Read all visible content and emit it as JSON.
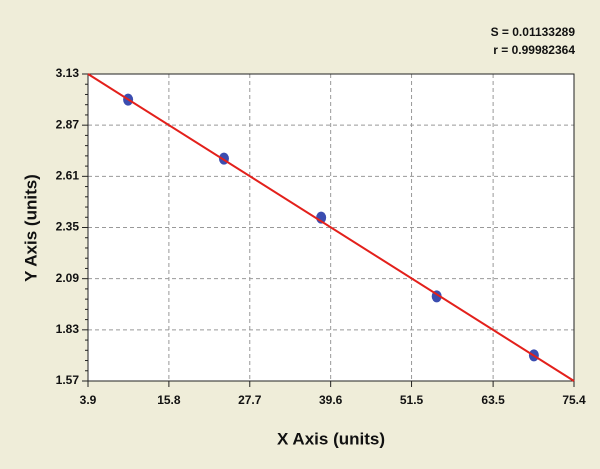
{
  "chart_data": {
    "type": "scatter",
    "x_label": "X Axis (units)",
    "y_label": "Y Axis (units)",
    "annotations": [
      "S = 0.01133289",
      "r = 0.99982364"
    ],
    "x": [
      9.8,
      23.9,
      38.2,
      55.2,
      69.5
    ],
    "values": [
      3.0,
      2.7,
      2.4,
      2.0,
      1.7
    ],
    "color": "#3b4db0",
    "fit": {
      "x": [
        3.9,
        75.4
      ],
      "values": [
        3.13,
        1.57
      ],
      "color": "#e3201b"
    },
    "xlim": [
      3.9,
      75.4
    ],
    "ylim": [
      1.57,
      3.13
    ],
    "xticks": [
      3.9,
      15.8,
      27.7,
      39.6,
      51.5,
      63.5,
      75.4
    ],
    "yticks": [
      1.57,
      1.83,
      2.09,
      2.35,
      2.61,
      2.87,
      3.13
    ],
    "grid": true
  }
}
